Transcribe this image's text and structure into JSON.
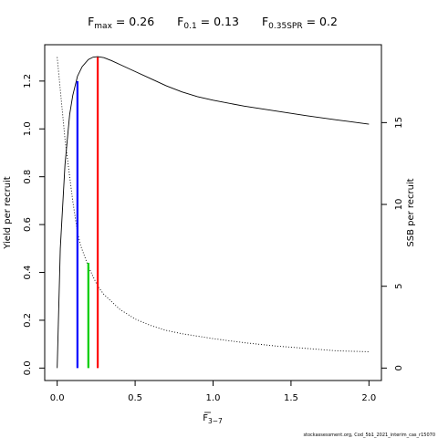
{
  "chart_data": {
    "type": "line",
    "title": {
      "parts": [
        {
          "base": "F",
          "sub": "max",
          "rest": " = 0.26"
        },
        {
          "base": "F",
          "sub": "0.1",
          "rest": " = 0.13"
        },
        {
          "base": "F",
          "sub": "0.35SPR",
          "rest": " = 0.2"
        }
      ]
    },
    "xlabel": {
      "base": "F",
      "sub": "3−7"
    },
    "ylabel_left": "Yield per recruit",
    "ylabel_right": "SSB per recruit",
    "xlim": [
      -0.08,
      2.08
    ],
    "ylim_left": [
      -0.052,
      1.352
    ],
    "ylim_right": [
      -0.76,
      19.76
    ],
    "x_ticks": [
      0,
      0.5,
      1,
      1.5,
      2
    ],
    "x_tick_labels": [
      "0.0",
      "0.5",
      "1.0",
      "1.5",
      "2.0"
    ],
    "y_left_ticks": [
      0,
      0.2,
      0.4,
      0.6,
      0.8,
      1.0,
      1.2
    ],
    "y_left_tick_labels": [
      "0.0",
      "0.2",
      "0.4",
      "0.6",
      "0.8",
      "1.0",
      "1.2"
    ],
    "y_right_ticks": [
      0,
      5,
      10,
      15
    ],
    "y_right_tick_labels": [
      "0",
      "5",
      "10",
      "15"
    ],
    "series": [
      {
        "axis": "left",
        "style": "solid",
        "color": "#000000",
        "x": [
          0,
          0.02,
          0.05,
          0.08,
          0.1,
          0.13,
          0.16,
          0.2,
          0.23,
          0.26,
          0.3,
          0.35,
          0.4,
          0.5,
          0.6,
          0.7,
          0.8,
          0.9,
          1.0,
          1.2,
          1.4,
          1.6,
          1.8,
          2.0
        ],
        "y": [
          0.0,
          0.5,
          0.85,
          1.06,
          1.14,
          1.22,
          1.26,
          1.29,
          1.3,
          1.302,
          1.298,
          1.285,
          1.27,
          1.24,
          1.21,
          1.18,
          1.155,
          1.135,
          1.12,
          1.095,
          1.075,
          1.055,
          1.037,
          1.02
        ]
      },
      {
        "axis": "right",
        "style": "dotted",
        "color": "#000000",
        "x": [
          0,
          0.05,
          0.1,
          0.13,
          0.15,
          0.2,
          0.26,
          0.3,
          0.4,
          0.5,
          0.6,
          0.7,
          0.8,
          1.0,
          1.2,
          1.4,
          1.6,
          1.8,
          2.0
        ],
        "y": [
          19.0,
          14.0,
          10.2,
          8.3,
          7.5,
          6.2,
          5.0,
          4.5,
          3.6,
          3.0,
          2.6,
          2.3,
          2.1,
          1.8,
          1.55,
          1.35,
          1.2,
          1.05,
          1.0
        ]
      }
    ],
    "reference_lines": [
      {
        "x": 0.13,
        "y_top": 1.2,
        "color": "#0000ff"
      },
      {
        "x": 0.2,
        "y_top": 0.44,
        "color": "#00cc00"
      },
      {
        "x": 0.26,
        "y_top": 1.3,
        "color": "#ff0000"
      }
    ]
  },
  "footer": "stockassessment.org, Cod_5b1_2021_interim_cas_r15070"
}
